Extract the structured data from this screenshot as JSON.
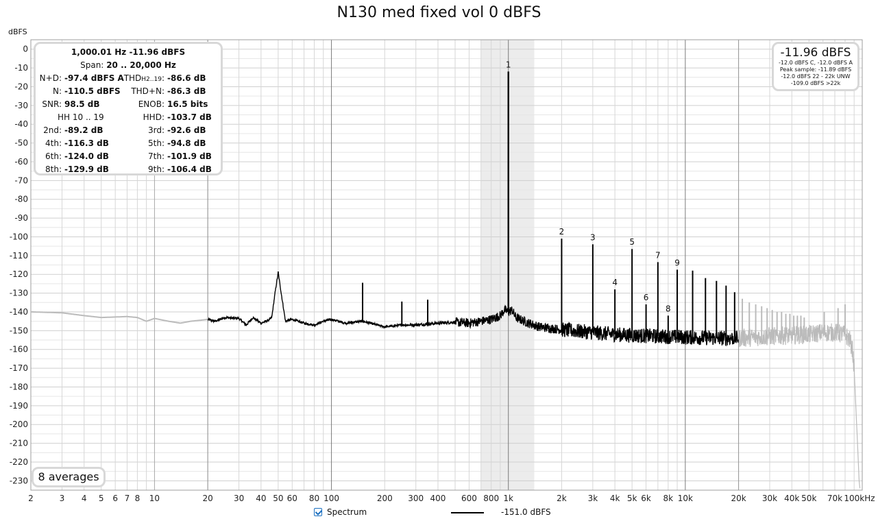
{
  "chart_data": {
    "type": "line",
    "title": "N130 med fixed vol 0 dBFS",
    "ylabel": "dBFS",
    "xscale": "log",
    "xlim": [
      2,
      100000
    ],
    "ylim": [
      -235,
      5
    ],
    "x_ticks": [
      {
        "v": 2,
        "label": "2"
      },
      {
        "v": 3,
        "label": "3"
      },
      {
        "v": 4,
        "label": "4"
      },
      {
        "v": 5,
        "label": "5"
      },
      {
        "v": 6,
        "label": "6"
      },
      {
        "v": 7,
        "label": "7"
      },
      {
        "v": 8,
        "label": "8"
      },
      {
        "v": 10,
        "label": "10"
      },
      {
        "v": 20,
        "label": "20"
      },
      {
        "v": 30,
        "label": "30"
      },
      {
        "v": 40,
        "label": "40"
      },
      {
        "v": 50,
        "label": "50"
      },
      {
        "v": 60,
        "label": "60"
      },
      {
        "v": 80,
        "label": "80"
      },
      {
        "v": 100,
        "label": "100"
      },
      {
        "v": 200,
        "label": "200"
      },
      {
        "v": 300,
        "label": "300"
      },
      {
        "v": 400,
        "label": "400"
      },
      {
        "v": 600,
        "label": "600"
      },
      {
        "v": 800,
        "label": "800"
      },
      {
        "v": 1000,
        "label": "1k"
      },
      {
        "v": 2000,
        "label": "2k"
      },
      {
        "v": 3000,
        "label": "3k"
      },
      {
        "v": 4000,
        "label": "4k"
      },
      {
        "v": 5000,
        "label": "5k"
      },
      {
        "v": 6000,
        "label": "6k"
      },
      {
        "v": 8000,
        "label": "8k"
      },
      {
        "v": 10000,
        "label": "10k"
      },
      {
        "v": 20000,
        "label": "20k"
      },
      {
        "v": 30000,
        "label": "30k"
      },
      {
        "v": 40000,
        "label": "40k"
      },
      {
        "v": 50000,
        "label": "50k"
      },
      {
        "v": 70000,
        "label": "70k"
      },
      {
        "v": 100000,
        "label": "100kHz"
      }
    ],
    "y_ticks": [
      0,
      -10,
      -20,
      -30,
      -40,
      -50,
      -60,
      -70,
      -80,
      -90,
      -100,
      -110,
      -120,
      -130,
      -140,
      -150,
      -160,
      -170,
      -180,
      -190,
      -200,
      -210,
      -220,
      -230
    ],
    "grid": true,
    "highlight_band_hz": [
      700,
      1400
    ],
    "measurement_range_hz": [
      20,
      20000
    ],
    "series": [
      {
        "name": "Spectrum",
        "color": "#000000",
        "out_of_band_color": "#bbbbbb",
        "noise_floor_points": [
          [
            2,
            -140
          ],
          [
            3,
            -140.5
          ],
          [
            4,
            -142
          ],
          [
            5,
            -143
          ],
          [
            7,
            -142.5
          ],
          [
            8,
            -143
          ],
          [
            9,
            -145
          ],
          [
            10,
            -143.5
          ],
          [
            12,
            -145
          ],
          [
            14,
            -146
          ],
          [
            16,
            -145
          ],
          [
            18,
            -144.5
          ],
          [
            20,
            -144
          ],
          [
            22,
            -145
          ],
          [
            25,
            -143
          ],
          [
            30,
            -143.5
          ],
          [
            33,
            -147
          ],
          [
            36,
            -143
          ],
          [
            40,
            -146
          ],
          [
            44,
            -144.5
          ],
          [
            46,
            -143
          ],
          [
            48,
            -130
          ],
          [
            50,
            -119
          ],
          [
            52,
            -130
          ],
          [
            55,
            -145
          ],
          [
            60,
            -144
          ],
          [
            70,
            -146
          ],
          [
            80,
            -147
          ],
          [
            90,
            -145
          ],
          [
            100,
            -144
          ],
          [
            120,
            -146
          ],
          [
            150,
            -145
          ],
          [
            200,
            -148
          ],
          [
            250,
            -147
          ],
          [
            300,
            -147
          ],
          [
            400,
            -146
          ],
          [
            500,
            -145.5
          ],
          [
            600,
            -146
          ],
          [
            700,
            -145
          ],
          [
            800,
            -144
          ],
          [
            900,
            -142
          ],
          [
            950,
            -139
          ],
          [
            1000,
            -140
          ],
          [
            1050,
            -139
          ],
          [
            1100,
            -143
          ],
          [
            1300,
            -146
          ],
          [
            1500,
            -148
          ],
          [
            2000,
            -149.5
          ],
          [
            3000,
            -151
          ],
          [
            4000,
            -152
          ],
          [
            5000,
            -152.5
          ],
          [
            7000,
            -153
          ],
          [
            10000,
            -153.5
          ],
          [
            15000,
            -154
          ],
          [
            20000,
            -154
          ],
          [
            30000,
            -153
          ],
          [
            40000,
            -152.5
          ],
          [
            50000,
            -152
          ],
          [
            60000,
            -151
          ],
          [
            70000,
            -151
          ],
          [
            80000,
            -152
          ],
          [
            85000,
            -155
          ],
          [
            88000,
            -160
          ],
          [
            90000,
            -170
          ],
          [
            92000,
            -190
          ],
          [
            94000,
            -210
          ],
          [
            96000,
            -230
          ],
          [
            97000,
            -234
          ]
        ],
        "peaks": [
          {
            "hz": 50,
            "db": -118.5
          },
          {
            "hz": 150,
            "db": -124.5
          },
          {
            "hz": 250,
            "db": -134.5
          },
          {
            "hz": 350,
            "db": -133.5
          },
          {
            "hz": 1000,
            "db": -11.96,
            "label": "1"
          },
          {
            "hz": 2000,
            "db": -101,
            "label": "2"
          },
          {
            "hz": 3000,
            "db": -104,
            "label": "3"
          },
          {
            "hz": 4000,
            "db": -128,
            "label": "4"
          },
          {
            "hz": 5000,
            "db": -106.5,
            "label": "5"
          },
          {
            "hz": 6000,
            "db": -136,
            "label": "6"
          },
          {
            "hz": 7000,
            "db": -113.5,
            "label": "7"
          },
          {
            "hz": 8000,
            "db": -142,
            "label": "8"
          },
          {
            "hz": 9000,
            "db": -117.5,
            "label": "9"
          },
          {
            "hz": 11000,
            "db": -118
          },
          {
            "hz": 13000,
            "db": -122
          },
          {
            "hz": 15000,
            "db": -123.5
          },
          {
            "hz": 17000,
            "db": -126
          },
          {
            "hz": 19000,
            "db": -129.5
          },
          {
            "hz": 21000,
            "db": -133
          },
          {
            "hz": 23000,
            "db": -135
          },
          {
            "hz": 25000,
            "db": -136
          },
          {
            "hz": 27000,
            "db": -137
          },
          {
            "hz": 29000,
            "db": -138
          },
          {
            "hz": 31000,
            "db": -139
          },
          {
            "hz": 33000,
            "db": -140
          },
          {
            "hz": 35000,
            "db": -140
          },
          {
            "hz": 37000,
            "db": -141
          },
          {
            "hz": 39000,
            "db": -141
          },
          {
            "hz": 41000,
            "db": -142
          },
          {
            "hz": 43000,
            "db": -142
          },
          {
            "hz": 45000,
            "db": -142
          },
          {
            "hz": 47000,
            "db": -143
          },
          {
            "hz": 61000,
            "db": -140
          },
          {
            "hz": 73000,
            "db": -138
          },
          {
            "hz": 80000,
            "db": -136
          }
        ]
      }
    ]
  },
  "stats": {
    "frequency_line": "1,000.01 Hz  -11.96 dBFS",
    "span_label": "Span:",
    "span_value": "20 .. 20,000 Hz",
    "rows": [
      {
        "l1": "N+D:",
        "v1": "-97.4 dBFS A",
        "l2": "THD",
        "l2sub": "H2..19",
        "l2end": ":",
        "v2": "-86.6 dB"
      },
      {
        "l1": "N:",
        "v1": "-110.5 dBFS",
        "l2": "THD+N:",
        "l2sub": "",
        "l2end": "",
        "v2": "-86.3 dB"
      },
      {
        "l1": "SNR:",
        "v1": "98.5 dB",
        "l2": "ENOB:",
        "l2sub": "",
        "l2end": "",
        "v2": "16.5 bits"
      },
      {
        "l1": "HH 10 .. 19",
        "v1": "",
        "l2": "HHD:",
        "l2sub": "",
        "l2end": "",
        "v2": "-103.7 dB"
      },
      {
        "l1": "2nd:",
        "v1": "-89.2 dB",
        "l2": "3rd:",
        "l2sub": "",
        "l2end": "",
        "v2": "-92.6 dB"
      },
      {
        "l1": "4th:",
        "v1": "-116.3 dB",
        "l2": "5th:",
        "l2sub": "",
        "l2end": "",
        "v2": "-94.8 dB"
      },
      {
        "l1": "6th:",
        "v1": "-124.0 dB",
        "l2": "7th:",
        "l2sub": "",
        "l2end": "",
        "v2": "-101.9 dB"
      },
      {
        "l1": "8th:",
        "v1": "-129.9 dB",
        "l2": "9th:",
        "l2sub": "",
        "l2end": "",
        "v2": "-106.4 dB"
      }
    ]
  },
  "peak_box": {
    "main": "-11.96 dBFS",
    "lines": [
      "-12.0 dBFS C, -12.0 dBFS A",
      "Peak sample: -11.89 dBFS",
      "-12.0 dBFS 22 - 22k UNW",
      "-109.0 dBFS >22k"
    ]
  },
  "averages_label": "8 averages",
  "legend": {
    "checkbox_label": "Spectrum",
    "checked": true,
    "value": "-151.0 dBFS"
  }
}
